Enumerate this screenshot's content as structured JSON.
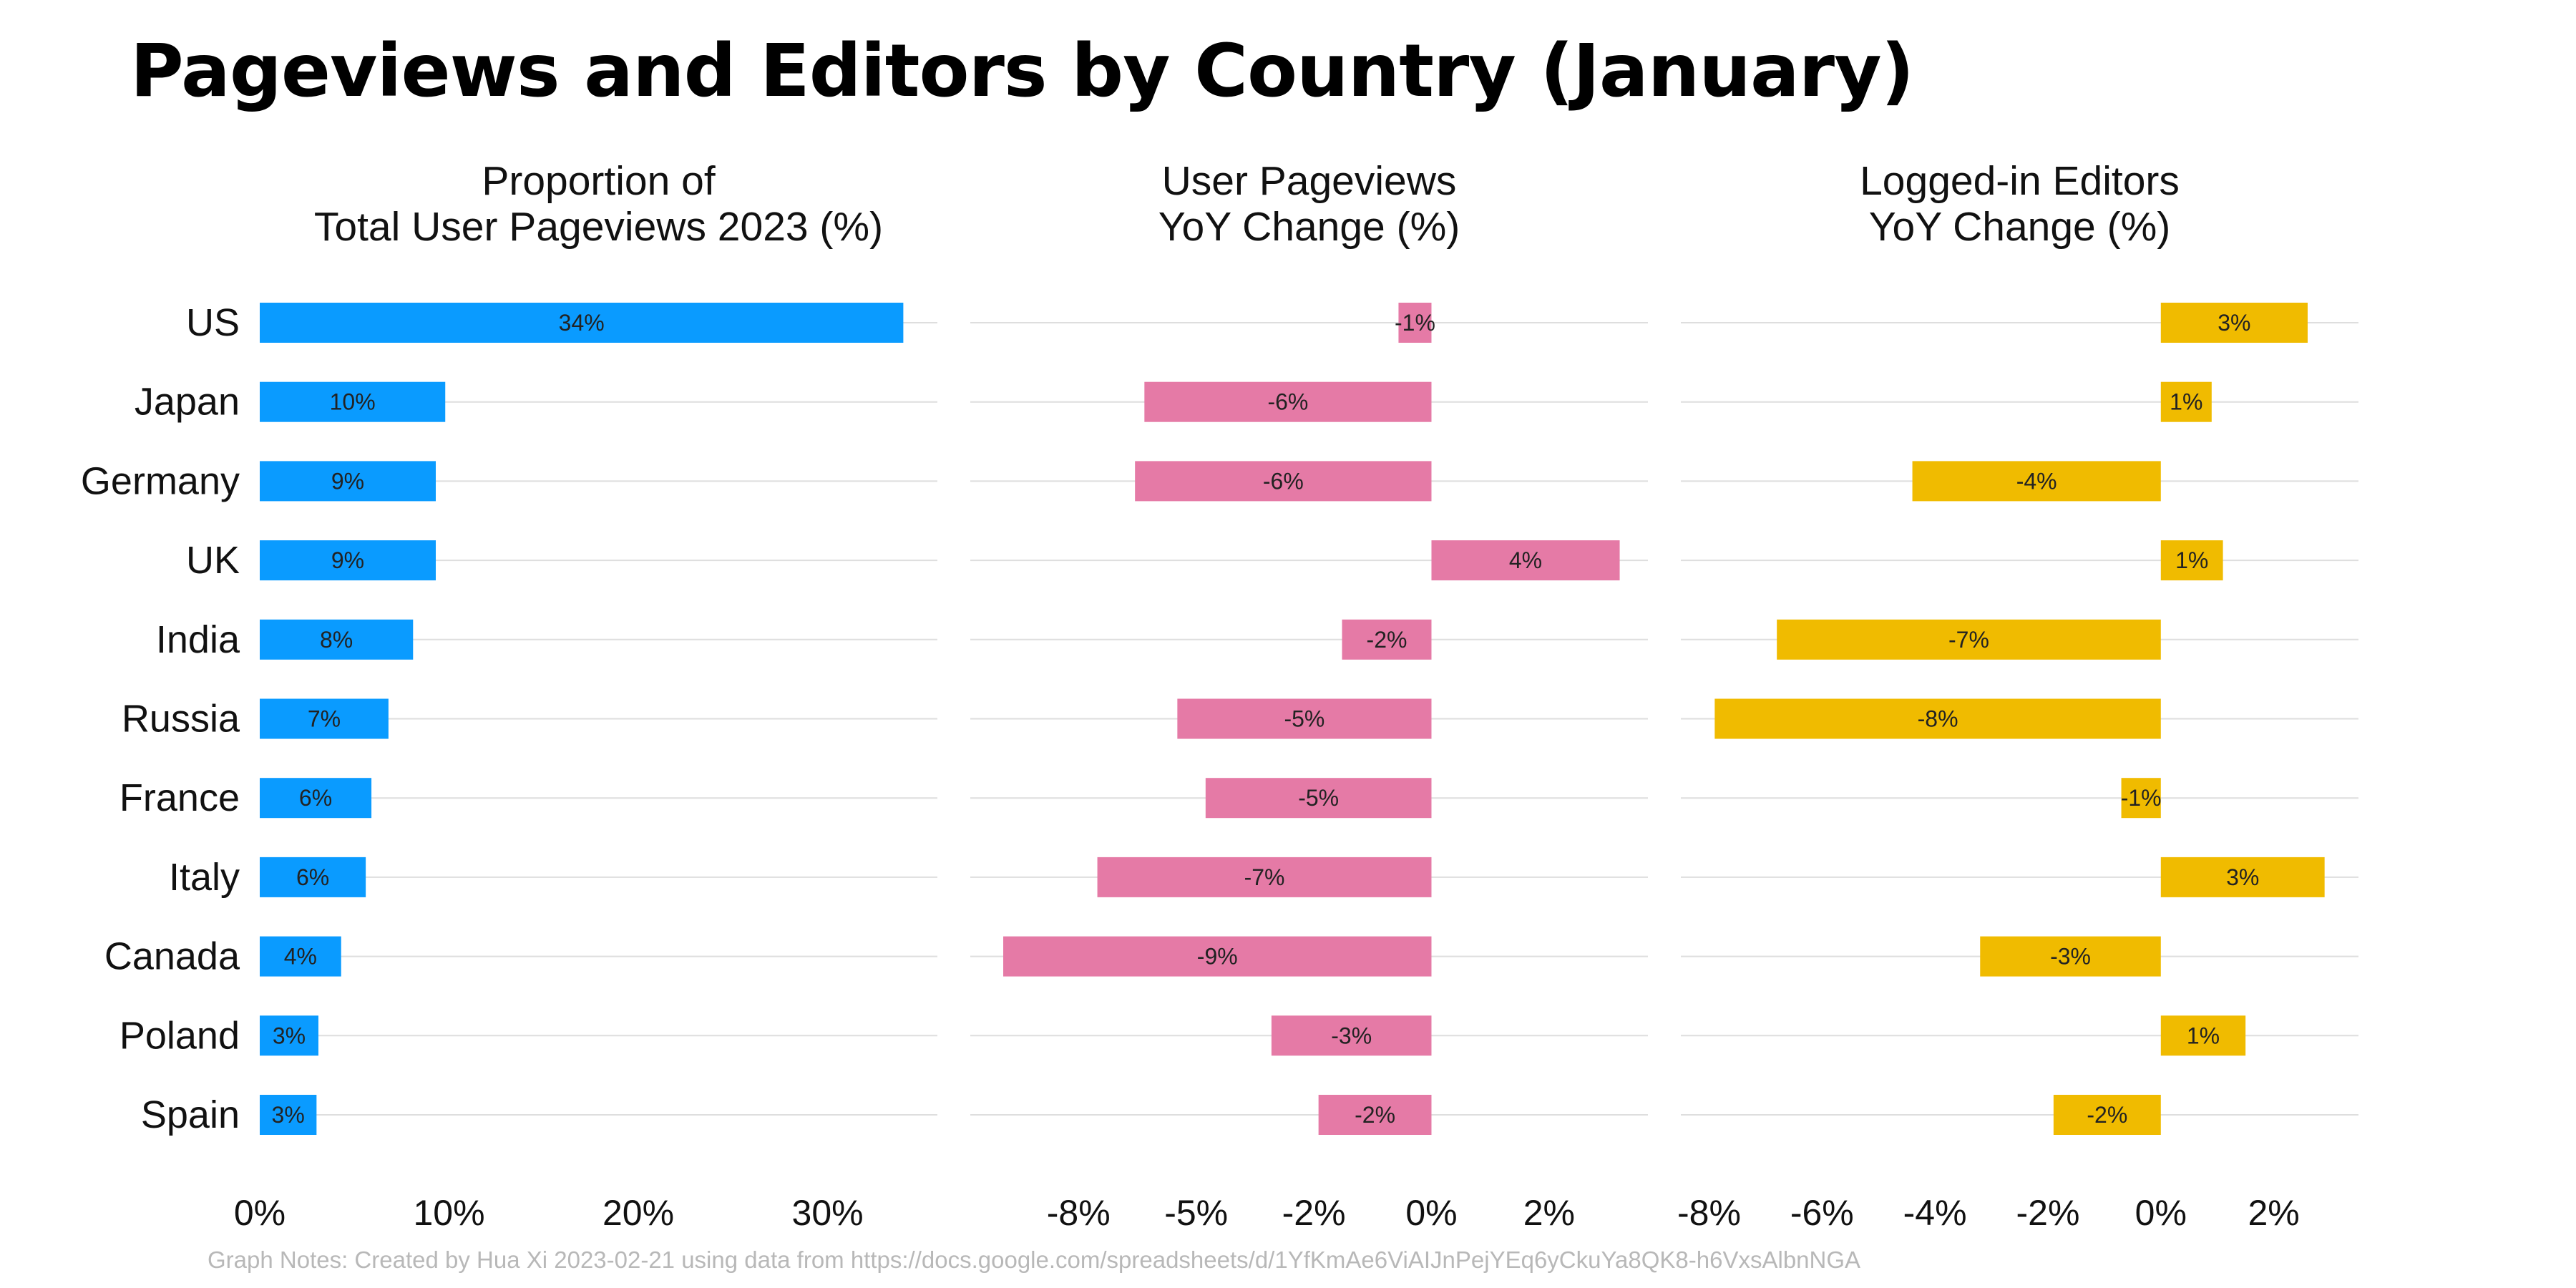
{
  "chart_data": {
    "type": "bar",
    "title": "Pageviews and Editors by Country (January)",
    "note": "Graph Notes: Created by Hua Xi 2023-02-21 using data from https://docs.google.com/spreadsheets/d/1YfKmAe6ViAIJnPejYEq6yCkuYa8QK8-h6VxsAlbnNGA",
    "categories": [
      "US",
      "Japan",
      "Germany",
      "UK",
      "India",
      "Russia",
      "France",
      "Italy",
      "Canada",
      "Poland",
      "Spain"
    ],
    "panels": [
      {
        "title_lines": [
          "Proportion of",
          "Total User Pageviews 2023 (%)"
        ],
        "color": "#0a9bff",
        "values": [
          34.0,
          9.8,
          9.3,
          9.3,
          8.1,
          6.8,
          5.9,
          5.6,
          4.3,
          3.1,
          3.0
        ],
        "labels": [
          "34%",
          "10%",
          "9%",
          "9%",
          "8%",
          "7%",
          "6%",
          "6%",
          "4%",
          "3%",
          "3%"
        ],
        "xlim": [
          0,
          35.8
        ],
        "ticks": [
          0,
          10,
          20,
          30
        ],
        "tick_labels": [
          "0%",
          "10%",
          "20%",
          "30%"
        ]
      },
      {
        "title_lines": [
          "User Pageviews",
          "YoY Change (%)"
        ],
        "color": "#e57aa6",
        "values": [
          -0.7,
          -6.1,
          -6.3,
          4.0,
          -1.9,
          -5.4,
          -4.8,
          -7.1,
          -9.1,
          -3.4,
          -2.4
        ],
        "labels": [
          "-1%",
          "-6%",
          "-6%",
          "4%",
          "-2%",
          "-5%",
          "-5%",
          "-7%",
          "-9%",
          "-3%",
          "-2%"
        ],
        "xlim": [
          -9.8,
          4.6
        ],
        "ticks": [
          -7.5,
          -5,
          -2.5,
          0,
          2.5
        ],
        "tick_labels": [
          "-8%",
          "-5%",
          "-2%",
          "0%",
          "2%"
        ]
      },
      {
        "title_lines": [
          "Logged-in Editors",
          "YoY Change (%)"
        ],
        "color": "#f0bb00",
        "values": [
          2.6,
          0.9,
          -4.4,
          1.1,
          -6.8,
          -7.9,
          -0.7,
          2.9,
          -3.2,
          1.5,
          -1.9
        ],
        "labels": [
          "3%",
          "1%",
          "-4%",
          "1%",
          "-7%",
          "-8%",
          "-1%",
          "3%",
          "-3%",
          "1%",
          "-2%"
        ],
        "xlim": [
          -8.5,
          3.5
        ],
        "ticks": [
          -8,
          -6,
          -4,
          -2,
          0,
          2
        ],
        "tick_labels": [
          "-8%",
          "-6%",
          "-4%",
          "-2%",
          "0%",
          "2%"
        ]
      }
    ],
    "grid": "horizontal",
    "legend": "none"
  }
}
